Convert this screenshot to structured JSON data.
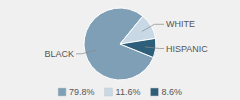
{
  "chart_data": {
    "type": "pie",
    "categories": [
      "BLACK",
      "WHITE",
      "HISPANIC"
    ],
    "values": [
      79.8,
      11.6,
      8.6
    ],
    "value_labels": [
      "79.8%",
      "11.6%",
      "8.6%"
    ],
    "colors": [
      "#7e9fb5",
      "#c8d8e4",
      "#2e5f7a"
    ],
    "legend": "bottom"
  }
}
